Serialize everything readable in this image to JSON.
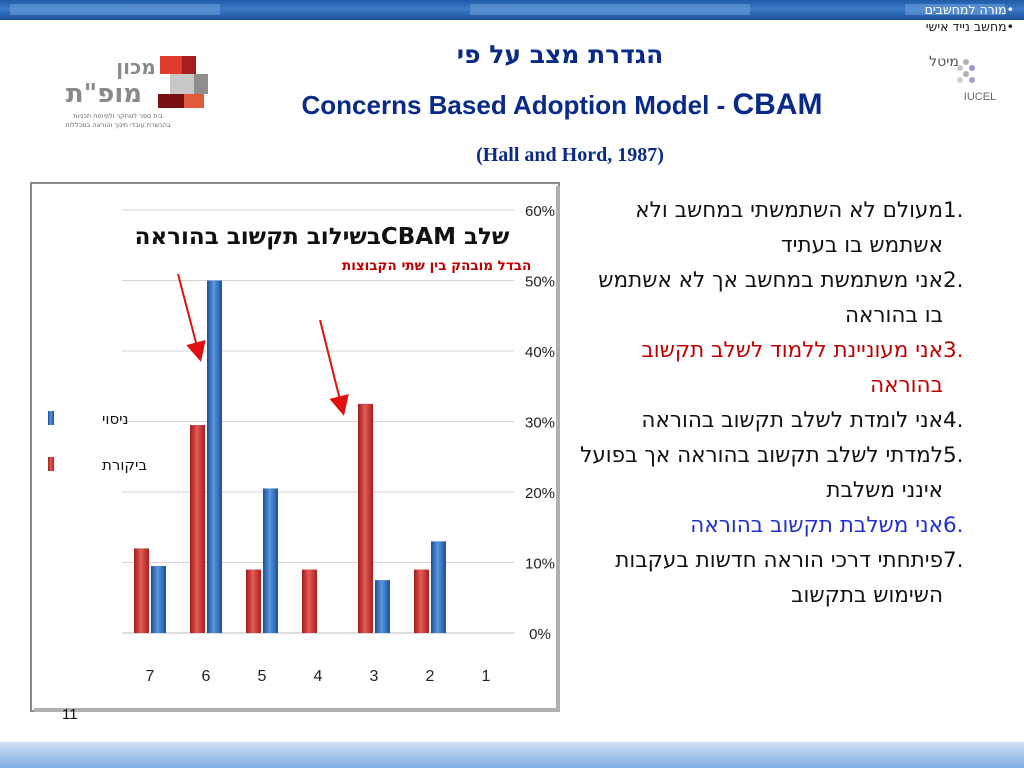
{
  "breadcrumb": {
    "line1": "•מורה למחשבים",
    "line2": "•מחשב נייד אישי"
  },
  "logo_left": {
    "name": "מכון",
    "name2": "מופ\"ת",
    "caption1": "בית ספר למחקר ולפיתוח תכניות",
    "caption2": "בהכשרת עובדי חינוך והוראה במכללות"
  },
  "logo_right": {
    "name": "מיטל",
    "brand": "IUCEL"
  },
  "title": {
    "hebrew": "הגדרת מצב על פי",
    "english_main": "Concerns Based Adoption Model - ",
    "english_acronym": "CBAM",
    "citation": "(Hall and Hord, 1987)"
  },
  "chart_data": {
    "type": "bar",
    "title": "שלב CBAMבשילוב תקשוב בהוראה",
    "annotation": "הבדל מובהק בין שתי הקבוצות",
    "categories": [
      "7",
      "6",
      "5",
      "4",
      "3",
      "2",
      "1"
    ],
    "series": [
      {
        "name": "ביקורת",
        "color": "#d42f2f",
        "values": [
          12,
          29.5,
          9,
          9,
          32.5,
          9,
          0
        ]
      },
      {
        "name": "ניסוי",
        "color": "#2a6fc4",
        "values": [
          9.5,
          50,
          20.5,
          0,
          7.5,
          13,
          0
        ]
      }
    ],
    "ylim": [
      0,
      60
    ],
    "yticks": [
      "0%",
      "10%",
      "20%",
      "30%",
      "40%",
      "50%",
      "60%"
    ],
    "grid": true,
    "legend_position": "left"
  },
  "list": [
    {
      "num": "1.",
      "text": "מעולם לא השתמשתי במחשב ולא אשתמש בו בעתיד",
      "color": ""
    },
    {
      "num": "2.",
      "text": "אני משתמשת במחשב אך לא אשתמש בו בהוראה",
      "color": ""
    },
    {
      "num": "3.",
      "text": "אני מעוניינת ללמוד לשלב תקשוב בהוראה",
      "color": "red"
    },
    {
      "num": "4.",
      "text": "אני לומדת לשלב תקשוב בהוראה",
      "color": ""
    },
    {
      "num": "5.",
      "text": "למדתי לשלב תקשוב בהוראה אך בפועל אינני משלבת",
      "color": ""
    },
    {
      "num": "6.",
      "text": "אני משלבת תקשוב בהוראה",
      "color": "blue"
    },
    {
      "num": "7.",
      "text": "פיתחתי דרכי הוראה חדשות בעקבות השימוש בתקשוב",
      "color": ""
    }
  ],
  "page_number": "11"
}
